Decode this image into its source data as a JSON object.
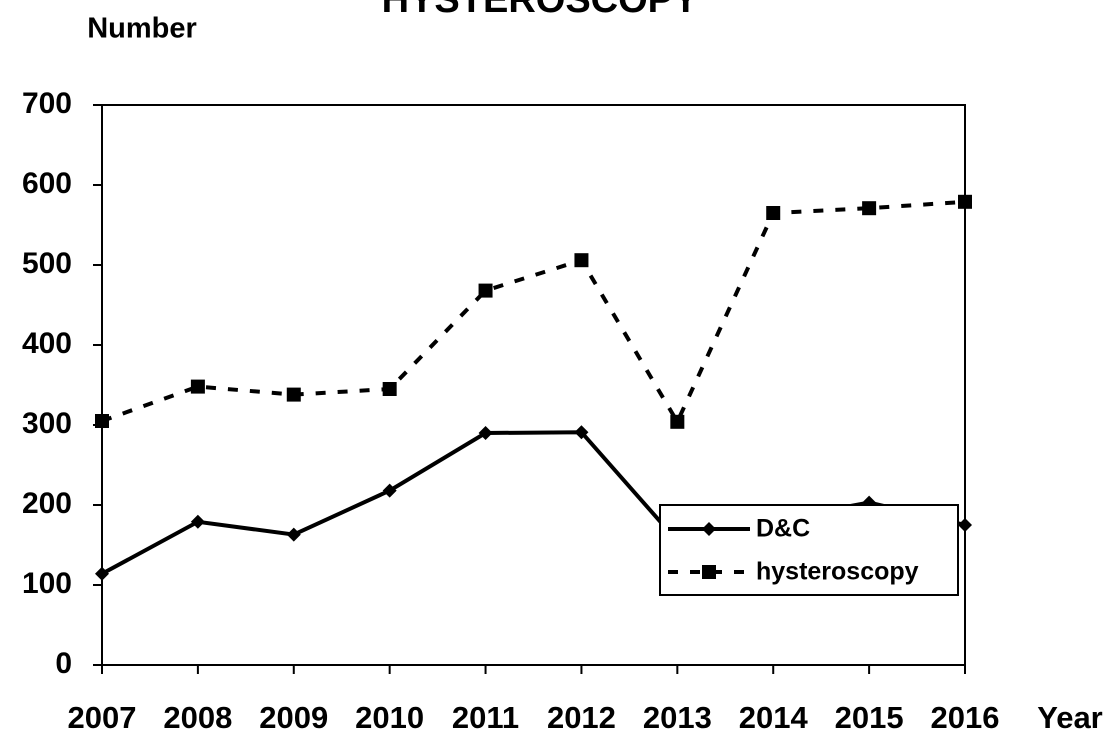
{
  "chart_data": {
    "type": "line",
    "title": "HYSTEROSCOPY",
    "y_label": "Number",
    "x_label": "Year",
    "x": [
      2007,
      2008,
      2009,
      2010,
      2011,
      2012,
      2013,
      2014,
      2015,
      2016
    ],
    "series": [
      {
        "name": "D&C",
        "color": "#000000",
        "line_style": "solid",
        "marker": "diamond",
        "values": [
          114,
          179,
          163,
          218,
          290,
          291,
          155,
          181,
          203,
          175
        ]
      },
      {
        "name": "hysteroscopy",
        "color": "#000000",
        "line_style": "dashed",
        "marker": "square",
        "values": [
          305,
          348,
          338,
          345,
          468,
          506,
          304,
          565,
          571,
          579
        ]
      }
    ],
    "xlim": [
      2007,
      2016
    ],
    "xticks": [
      2007,
      2008,
      2009,
      2010,
      2011,
      2012,
      2013,
      2014,
      2015,
      2016
    ],
    "ylim": [
      0,
      700
    ],
    "yticks": [
      0,
      100,
      200,
      300,
      400,
      500,
      600,
      700
    ],
    "grid": false,
    "legend": "lower-right"
  }
}
